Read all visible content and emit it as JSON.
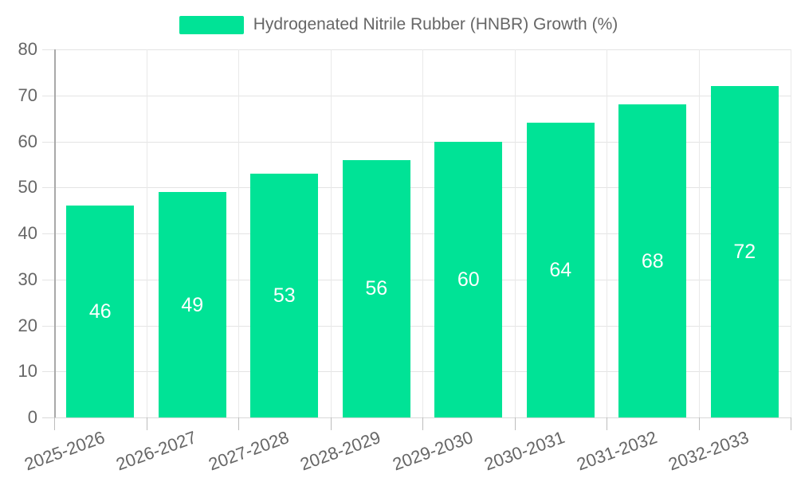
{
  "legend": {
    "label": "Hydrogenated Nitrile Rubber (HNBR) Growth (%)",
    "marker_color": "#00E396"
  },
  "chart_data": {
    "type": "bar",
    "title": "",
    "xlabel": "",
    "ylabel": "",
    "categories": [
      "2025-2026",
      "2026-2027",
      "2027-2028",
      "2028-2029",
      "2029-2030",
      "2030-2031",
      "2031-2032",
      "2032-2033"
    ],
    "series": [
      {
        "name": "Hydrogenated Nitrile Rubber (HNBR) Growth (%)",
        "values": [
          46,
          49,
          53,
          56,
          60,
          64,
          68,
          72
        ]
      }
    ],
    "data_labels": [
      46,
      49,
      53,
      56,
      60,
      64,
      68,
      72
    ],
    "ylim": [
      0,
      80
    ],
    "ytick_step": 10,
    "yticks": [
      0,
      10,
      20,
      30,
      40,
      50,
      60,
      70,
      80
    ],
    "grid": true,
    "legend_position": "top-center",
    "colors": {
      "bar": "#00E396",
      "data_label": "#ffffff",
      "axis_text": "#666666",
      "grid": "#e4e4e4",
      "axis_line": "#a9a9a9"
    }
  }
}
